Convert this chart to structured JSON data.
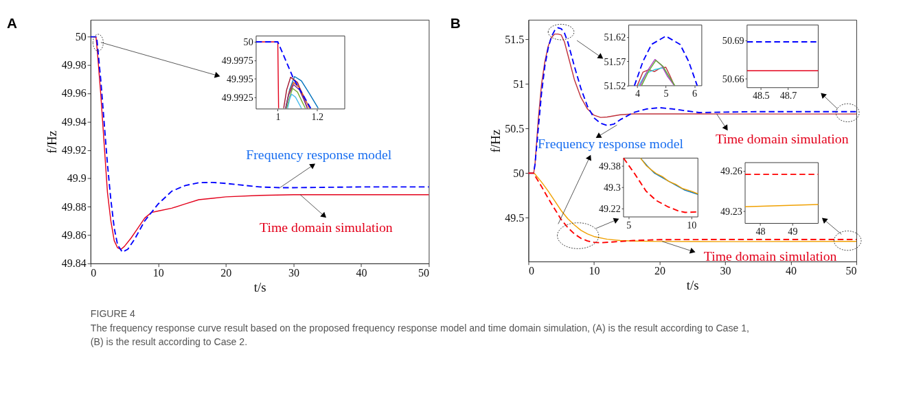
{
  "chart_data": [
    {
      "type": "line",
      "title": "A",
      "xlabel": "t/s",
      "ylabel": "f/Hz",
      "xlim": [
        0,
        50
      ],
      "ylim": [
        49.84,
        50.012
      ],
      "xticks": [
        0,
        10,
        20,
        30,
        40,
        50
      ],
      "yticks": [
        49.84,
        49.86,
        49.88,
        49.9,
        49.92,
        49.94,
        49.96,
        49.98,
        50
      ],
      "series": [
        {
          "color": "#e3001b",
          "line_style": "solid",
          "x": [
            0,
            0.8,
            1,
            1.5,
            2,
            2.5,
            3,
            3.5,
            4,
            4.5,
            5,
            6,
            7,
            8,
            9,
            10,
            12,
            14,
            16,
            18,
            20,
            25,
            30,
            40,
            50
          ],
          "values": [
            50,
            50,
            49.99,
            49.96,
            49.925,
            49.89,
            49.87,
            49.856,
            49.851,
            49.85,
            49.852,
            49.858,
            49.865,
            49.872,
            49.876,
            49.877,
            49.879,
            49.882,
            49.885,
            49.886,
            49.887,
            49.888,
            49.8885,
            49.8885,
            49.8885
          ]
        },
        {
          "color": "#0000ff",
          "line_style": "dashed",
          "x": [
            0,
            0.9,
            1.5,
            2,
            2.5,
            3,
            3.5,
            4,
            4.7,
            5.5,
            6.5,
            8,
            10,
            12,
            14,
            16,
            18,
            20,
            22,
            25,
            28,
            30,
            40,
            50
          ],
          "values": [
            50,
            50,
            49.97,
            49.94,
            49.91,
            49.885,
            49.865,
            49.853,
            49.848,
            49.85,
            49.857,
            49.87,
            49.882,
            49.891,
            49.895,
            49.897,
            49.8972,
            49.8965,
            49.8955,
            49.894,
            49.8935,
            49.8935,
            49.894,
            49.894
          ]
        }
      ],
      "annotations": [
        {
          "text": "Frequency response model",
          "x": 28,
          "y": 49.8935
        },
        {
          "text": "Time domain simulation",
          "x": 31,
          "y": 49.8885
        }
      ]
    },
    {
      "type": "line",
      "xlim": [
        0.89,
        1.34
      ],
      "ylim": [
        49.9909,
        50.0008
      ],
      "xticks": [
        1,
        1.2
      ],
      "yticks": [
        49.9925,
        49.995,
        49.9975,
        50
      ],
      "series": [
        {
          "color": "#e3001b",
          "line_style": "solid",
          "x": [
            0.89,
            1.0,
            1.004
          ],
          "values": [
            50,
            50,
            49.991
          ]
        },
        {
          "color": "#0072bd",
          "line_style": "solid",
          "x": [
            1.04,
            1.06,
            1.085,
            1.12,
            1.16,
            1.205
          ],
          "values": [
            49.991,
            49.9935,
            49.9953,
            49.9947,
            49.993,
            49.991
          ]
        },
        {
          "color": "#a2142f",
          "line_style": "solid",
          "x": [
            1.03,
            1.045,
            1.065,
            1.1,
            1.13,
            1.15
          ],
          "values": [
            49.991,
            49.9935,
            49.9952,
            49.9945,
            49.9925,
            49.991
          ]
        },
        {
          "color": "#d95319",
          "line_style": "solid",
          "x": [
            1.04,
            1.055,
            1.08,
            1.11,
            1.14,
            1.16
          ],
          "values": [
            49.991,
            49.993,
            49.9945,
            49.9938,
            49.9922,
            49.991
          ]
        },
        {
          "color": "#7e2f8e",
          "line_style": "solid",
          "x": [
            1.04,
            1.055,
            1.08,
            1.11,
            1.135,
            1.15
          ],
          "values": [
            49.991,
            49.9928,
            49.9942,
            49.9935,
            49.992,
            49.991
          ]
        },
        {
          "color": "#77ac30",
          "line_style": "solid",
          "x": [
            1.045,
            1.06,
            1.075,
            1.1,
            1.125,
            1.14
          ],
          "values": [
            49.991,
            49.9925,
            49.9937,
            49.9932,
            49.9918,
            49.991
          ]
        },
        {
          "color": "#4dbeee",
          "line_style": "solid",
          "x": [
            1.05,
            1.06,
            1.07,
            1.09,
            1.11,
            1.12
          ],
          "values": [
            49.991,
            49.9922,
            49.9929,
            49.9925,
            49.9915,
            49.991
          ]
        },
        {
          "color": "#0000ff",
          "line_style": "dashed",
          "x": [
            0.89,
            1.0,
            1.08,
            1.167
          ],
          "values": [
            50,
            50,
            49.995,
            49.991
          ]
        }
      ]
    },
    {
      "type": "line",
      "title": "B",
      "xlabel": "t/s",
      "ylabel": "f/Hz",
      "xlim": [
        0,
        50
      ],
      "ylim": [
        49.01,
        51.72
      ],
      "xticks": [
        0,
        10,
        20,
        30,
        40,
        50
      ],
      "yticks": [
        49.5,
        50,
        50.5,
        51,
        51.5
      ],
      "series": [
        {
          "color": "#c0303a",
          "line_style": "solid",
          "x": [
            0,
            0.8,
            1,
            1.5,
            2,
            2.5,
            3,
            3.5,
            4,
            4.5,
            5,
            5.5,
            6,
            7,
            8,
            9,
            10,
            11,
            12,
            14,
            16,
            20,
            30,
            50
          ],
          "values": [
            50,
            50,
            50.1,
            50.6,
            51.0,
            51.25,
            51.42,
            51.52,
            51.56,
            51.56,
            51.55,
            51.47,
            51.33,
            51.05,
            50.85,
            50.72,
            50.65,
            50.625,
            50.63,
            50.655,
            50.665,
            50.665,
            50.664,
            50.664
          ]
        },
        {
          "color": "#0000ff",
          "line_style": "dashed",
          "x": [
            0,
            0.8,
            1,
            1.5,
            2,
            2.5,
            3,
            3.5,
            4,
            4.5,
            5,
            5.5,
            6,
            7,
            8,
            9,
            10,
            11,
            12,
            13,
            14,
            16,
            18,
            20,
            22,
            24,
            26,
            30,
            35,
            40,
            50
          ],
          "values": [
            50,
            50,
            50.1,
            50.5,
            50.9,
            51.2,
            51.4,
            51.53,
            51.6,
            51.63,
            51.62,
            51.57,
            51.47,
            51.2,
            50.95,
            50.75,
            50.62,
            50.56,
            50.535,
            50.55,
            50.6,
            50.68,
            50.72,
            50.735,
            50.72,
            50.7,
            50.68,
            50.685,
            50.69,
            50.69,
            50.69
          ]
        },
        {
          "color": "#f0a000",
          "line_style": "solid",
          "x": [
            0,
            0.8,
            1,
            2,
            3,
            4,
            5,
            6,
            7,
            8,
            9,
            10,
            12,
            14,
            16,
            20,
            30,
            50
          ],
          "values": [
            50,
            50,
            49.99,
            49.9,
            49.8,
            49.69,
            49.58,
            49.49,
            49.42,
            49.36,
            49.32,
            49.29,
            49.26,
            49.245,
            49.24,
            49.235,
            49.233,
            49.236
          ]
        },
        {
          "color": "#ff0000",
          "line_style": "dashed",
          "x": [
            0,
            0.8,
            1,
            2,
            3,
            4,
            5,
            6,
            7,
            8,
            9,
            10,
            11,
            13,
            16,
            20,
            30,
            50
          ],
          "values": [
            50,
            50,
            49.97,
            49.85,
            49.72,
            49.6,
            49.48,
            49.39,
            49.32,
            49.27,
            49.24,
            49.225,
            49.22,
            49.23,
            49.245,
            49.255,
            49.257,
            49.257
          ]
        }
      ],
      "annotations": [
        {
          "text": "Frequency response model",
          "x": 13.5,
          "y": 50.54
        },
        {
          "text": "Time domain simulation",
          "x": 28.7,
          "y": 50.664
        },
        {
          "text": "Time domain simulation",
          "x": 20.4,
          "y": 49.235
        }
      ]
    },
    {
      "type": "line",
      "xlim": [
        3.7,
        6.26
      ],
      "ylim": [
        51.52,
        51.645
      ],
      "xticks": [
        4,
        5,
        6
      ],
      "yticks": [
        51.52,
        51.57,
        51.62
      ],
      "series": [
        {
          "color": "#c0303a",
          "line_style": "solid",
          "x": [
            4.0,
            4.2,
            4.4,
            4.6,
            4.8,
            5.0,
            5.15,
            5.3
          ],
          "values": [
            51.52,
            51.548,
            51.553,
            51.549,
            51.556,
            51.558,
            51.54,
            51.52
          ]
        },
        {
          "color": "#30d0e0",
          "line_style": "solid",
          "x": [
            4.05,
            4.3,
            4.6,
            4.9,
            5.1,
            5.3
          ],
          "values": [
            51.52,
            51.545,
            51.553,
            51.557,
            51.54,
            51.52
          ]
        },
        {
          "color": "#b040c0",
          "line_style": "solid",
          "x": [
            4.1,
            4.35,
            4.62,
            4.85,
            5.05,
            5.3
          ],
          "values": [
            51.52,
            51.55,
            51.574,
            51.562,
            51.54,
            51.52
          ]
        },
        {
          "color": "#60b030",
          "line_style": "solid",
          "x": [
            4.15,
            4.4,
            4.65,
            4.9,
            5.1,
            5.32
          ],
          "values": [
            51.52,
            51.55,
            51.572,
            51.56,
            51.54,
            51.52
          ]
        },
        {
          "color": "#0000ff",
          "line_style": "dashed",
          "x": [
            3.9,
            4.2,
            4.5,
            5.0,
            5.5,
            5.8,
            6.1
          ],
          "values": [
            51.52,
            51.57,
            51.605,
            51.622,
            51.605,
            51.57,
            51.52
          ]
        }
      ]
    },
    {
      "type": "line",
      "xlim": [
        48.4,
        48.92
      ],
      "ylim": [
        50.653,
        50.702
      ],
      "xticks": [
        48.5,
        48.7
      ],
      "yticks": [
        50.66,
        50.69
      ],
      "series": [
        {
          "color": "#0000ff",
          "line_style": "dashed",
          "x": [
            48.4,
            48.92
          ],
          "values": [
            50.6888,
            50.6888
          ]
        },
        {
          "color": "#e3001b",
          "line_style": "solid",
          "x": [
            48.4,
            48.92
          ],
          "values": [
            50.6663,
            50.6663
          ]
        }
      ]
    },
    {
      "type": "line",
      "xlim": [
        4.6,
        10.52
      ],
      "ylim": [
        49.188,
        49.41
      ],
      "xticks": [
        5,
        10
      ],
      "yticks": [
        49.22,
        49.3,
        49.38
      ],
      "series": [
        {
          "color": "#ff0000",
          "line_style": "dashed",
          "x": [
            4.6,
            5.5,
            6.4,
            7.2,
            8.1,
            9.0,
            9.5,
            10.52
          ],
          "values": [
            49.41,
            49.35,
            49.285,
            49.25,
            49.227,
            49.21,
            49.205,
            49.207
          ]
        },
        {
          "color": "#0072bd",
          "line_style": "solid",
          "x": [
            5.95,
            6.5,
            7.07,
            8.1,
            9.48,
            10.52
          ],
          "values": [
            49.41,
            49.38,
            49.353,
            49.325,
            49.289,
            49.273
          ]
        },
        {
          "color": "#f0a000",
          "line_style": "solid",
          "x": [
            5.95,
            6.4,
            6.8,
            7.2,
            7.7,
            8.2,
            8.8,
            9.3,
            10.0,
            10.52
          ],
          "values": [
            49.41,
            49.382,
            49.366,
            49.352,
            49.34,
            49.322,
            49.31,
            49.295,
            49.285,
            49.275
          ]
        }
      ]
    },
    {
      "type": "line",
      "xlim": [
        47.53,
        49.8
      ],
      "ylim": [
        49.221,
        49.266
      ],
      "xticks": [
        48,
        49
      ],
      "yticks": [
        49.23,
        49.26
      ],
      "series": [
        {
          "color": "#ff0000",
          "line_style": "dashed",
          "x": [
            47.53,
            49.8
          ],
          "values": [
            49.2573,
            49.2573
          ]
        },
        {
          "color": "#f0a000",
          "line_style": "solid",
          "x": [
            47.53,
            49.8
          ],
          "values": [
            49.2333,
            49.235
          ]
        }
      ]
    },
    {
      "type": "other",
      "title": "FIGURE 4",
      "annotations": [
        "The frequency response curve result based on the proposed frequency response model and time domain simulation, (A) is the result according to Case 1, (B) is the result according to Case 2."
      ]
    }
  ]
}
